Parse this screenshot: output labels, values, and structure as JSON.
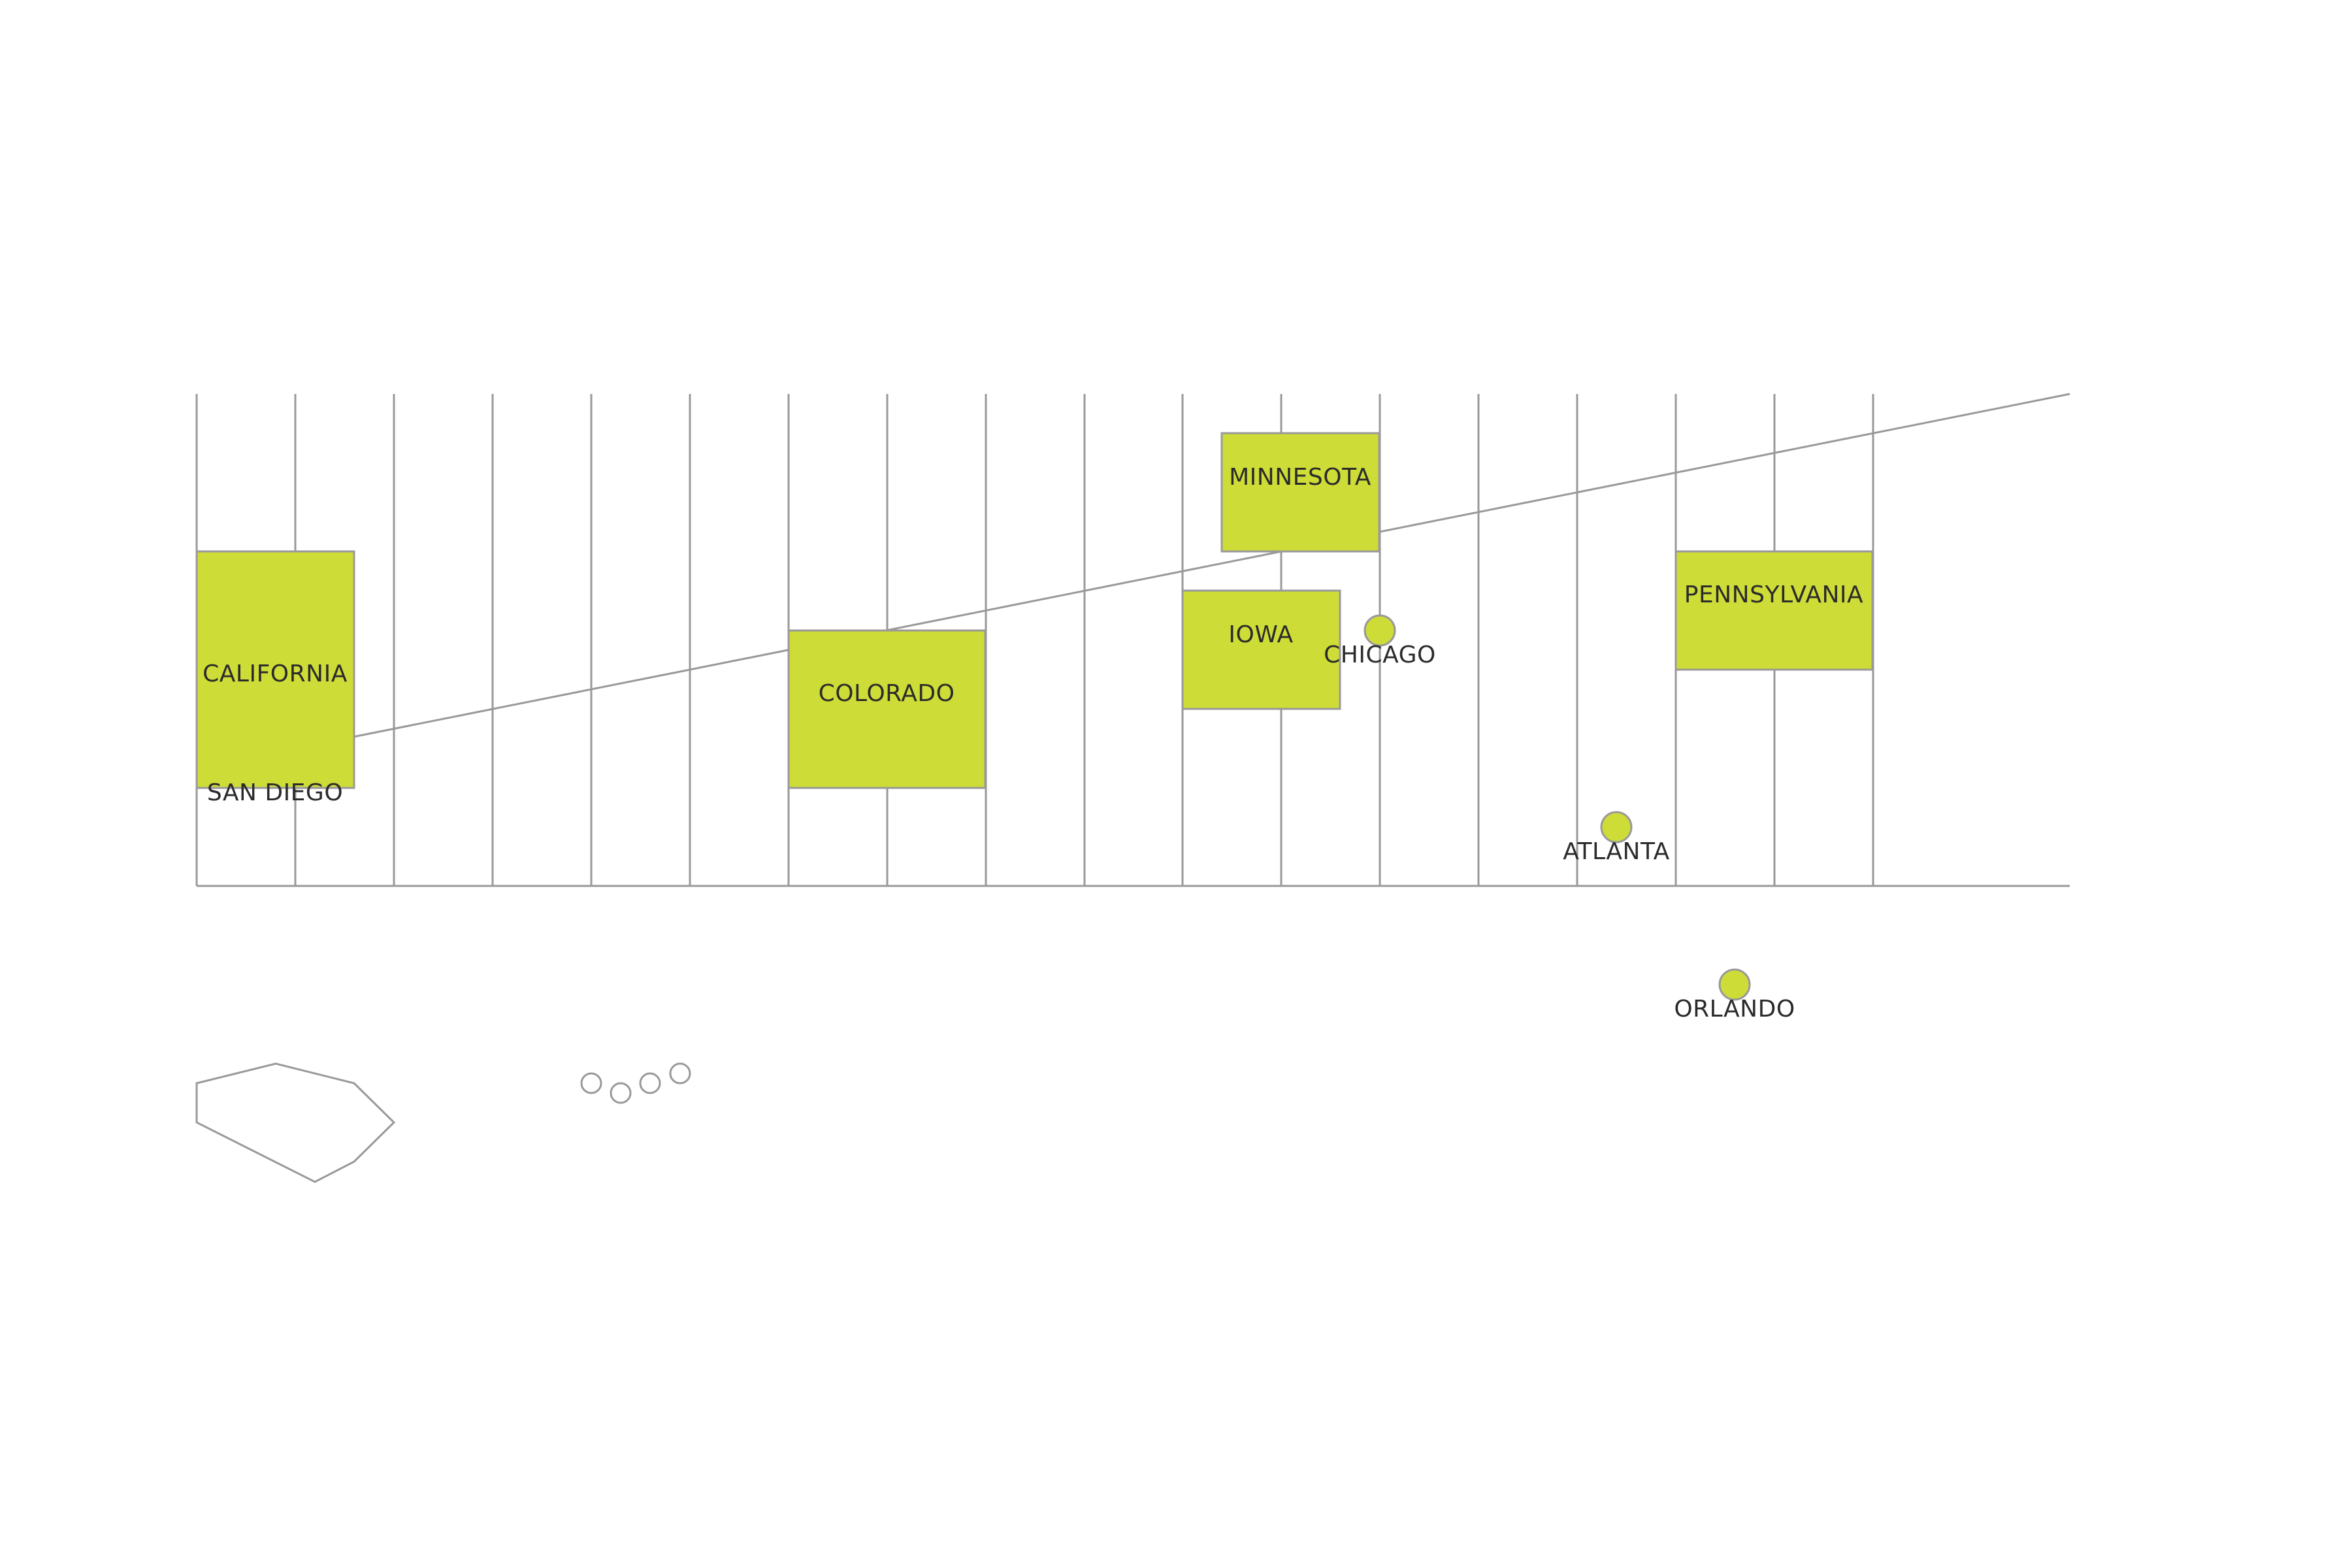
{
  "map": {
    "colors": {
      "highlight_fill": "#cedc37",
      "outline": "#999999",
      "label": "#2b2b2b",
      "background": "#ffffff"
    },
    "states": [
      {
        "key": "california",
        "label": "CALIFORNIA"
      },
      {
        "key": "colorado",
        "label": "COLORADO"
      },
      {
        "key": "minnesota",
        "label": "MINNESOTA"
      },
      {
        "key": "iowa",
        "label": "IOWA"
      },
      {
        "key": "pennsylvania",
        "label": "PENNSYLVANIA"
      }
    ],
    "cities": [
      {
        "key": "san-diego",
        "label": "SAN DIEGO",
        "marker": false
      },
      {
        "key": "chicago",
        "label": "CHICAGO",
        "marker": true
      },
      {
        "key": "atlanta",
        "label": "ATLANTA",
        "marker": true
      },
      {
        "key": "orlando",
        "label": "ORLANDO",
        "marker": true
      }
    ]
  }
}
